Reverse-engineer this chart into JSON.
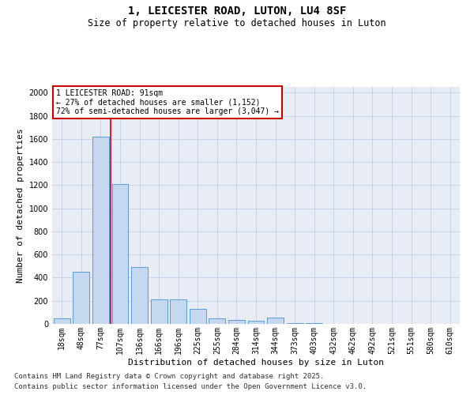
{
  "title_line1": "1, LEICESTER ROAD, LUTON, LU4 8SF",
  "title_line2": "Size of property relative to detached houses in Luton",
  "xlabel": "Distribution of detached houses by size in Luton",
  "ylabel": "Number of detached properties",
  "categories": [
    "18sqm",
    "48sqm",
    "77sqm",
    "107sqm",
    "136sqm",
    "166sqm",
    "196sqm",
    "225sqm",
    "255sqm",
    "284sqm",
    "314sqm",
    "344sqm",
    "373sqm",
    "403sqm",
    "432sqm",
    "462sqm",
    "492sqm",
    "521sqm",
    "551sqm",
    "580sqm",
    "610sqm"
  ],
  "values": [
    50,
    450,
    1620,
    1210,
    490,
    215,
    215,
    130,
    50,
    35,
    25,
    55,
    10,
    10,
    0,
    0,
    0,
    0,
    0,
    0,
    0
  ],
  "bar_color": "#c5d8f0",
  "bar_edge_color": "#5b9bd5",
  "red_line_x": 2.5,
  "annotation_text": "1 LEICESTER ROAD: 91sqm\n← 27% of detached houses are smaller (1,152)\n72% of semi-detached houses are larger (3,047) →",
  "annotation_box_color": "#ffffff",
  "annotation_box_edge": "#cc0000",
  "red_line_color": "#cc0000",
  "ylim": [
    0,
    2050
  ],
  "yticks": [
    0,
    200,
    400,
    600,
    800,
    1000,
    1200,
    1400,
    1600,
    1800,
    2000
  ],
  "grid_color": "#c8d4e8",
  "background_color": "#e8edf5",
  "footer_line1": "Contains HM Land Registry data © Crown copyright and database right 2025.",
  "footer_line2": "Contains public sector information licensed under the Open Government Licence v3.0.",
  "title_fontsize": 10,
  "subtitle_fontsize": 8.5,
  "axis_label_fontsize": 8,
  "tick_fontsize": 7,
  "annotation_fontsize": 7,
  "footer_fontsize": 6.5
}
